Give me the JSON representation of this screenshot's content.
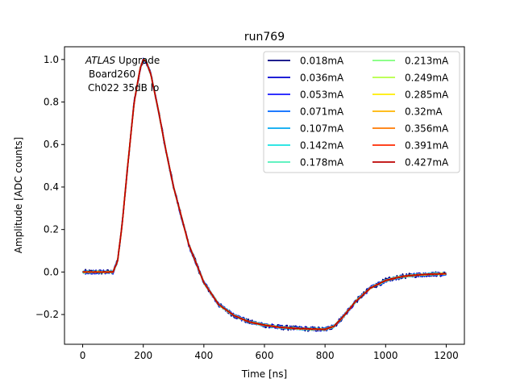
{
  "chart_data": {
    "type": "line",
    "title": "run769",
    "xlabel": "Time [ns]",
    "ylabel": "Amplitude [ADC counts]",
    "xlim": [
      -60,
      1260
    ],
    "ylim": [
      -0.34,
      1.06
    ],
    "xticks": [
      0,
      200,
      400,
      600,
      800,
      1000,
      1200
    ],
    "yticks": [
      -0.2,
      0.0,
      0.2,
      0.4,
      0.6,
      0.8,
      1.0
    ],
    "xtick_labels": [
      "0",
      "200",
      "400",
      "600",
      "800",
      "1000",
      "1200"
    ],
    "ytick_labels": [
      "−0.2",
      "0.0",
      "0.2",
      "0.4",
      "0.6",
      "0.8",
      "1.0"
    ],
    "grid": false,
    "legend_position": "top-right",
    "legend_columns": 2,
    "annotation": {
      "italic": "ATLAS",
      "line1_rest": " Upgrade",
      "line2": "Board260",
      "line3": "Ch022 35dB lo"
    },
    "x": [
      0,
      100,
      115,
      130,
      150,
      170,
      190,
      200,
      210,
      225,
      250,
      275,
      300,
      350,
      400,
      450,
      500,
      550,
      600,
      650,
      700,
      750,
      800,
      830,
      860,
      900,
      950,
      1000,
      1050,
      1100,
      1150,
      1200
    ],
    "template": [
      0.0,
      0.0,
      0.05,
      0.22,
      0.52,
      0.8,
      0.96,
      1.0,
      0.99,
      0.93,
      0.76,
      0.57,
      0.4,
      0.13,
      -0.05,
      -0.155,
      -0.205,
      -0.235,
      -0.25,
      -0.26,
      -0.265,
      -0.268,
      -0.27,
      -0.255,
      -0.21,
      -0.14,
      -0.075,
      -0.04,
      -0.022,
      -0.014,
      -0.01,
      -0.008
    ],
    "series": [
      {
        "name": "0.018mA",
        "color": "#00007f",
        "noise": 0.012
      },
      {
        "name": "0.036mA",
        "color": "#0000d0",
        "noise": 0.01
      },
      {
        "name": "0.053mA",
        "color": "#1414ff",
        "noise": 0.008
      },
      {
        "name": "0.071mA",
        "color": "#0068ff",
        "noise": 0.007
      },
      {
        "name": "0.107mA",
        "color": "#00a8f0",
        "noise": 0.006
      },
      {
        "name": "0.142mA",
        "color": "#16e3e0",
        "noise": 0.005
      },
      {
        "name": "0.178mA",
        "color": "#4bf0b8",
        "noise": 0.004
      },
      {
        "name": "0.213mA",
        "color": "#7dff7a",
        "noise": 0.004
      },
      {
        "name": "0.249mA",
        "color": "#b4ff43",
        "noise": 0.003
      },
      {
        "name": "0.285mA",
        "color": "#ffed00",
        "noise": 0.003
      },
      {
        "name": "0.32mA",
        "color": "#ffb400",
        "noise": 0.002
      },
      {
        "name": "0.356mA",
        "color": "#ff7a00",
        "noise": 0.002
      },
      {
        "name": "0.391mA",
        "color": "#ff2a00",
        "noise": 0.002
      },
      {
        "name": "0.427mA",
        "color": "#bb0000",
        "noise": 0.002
      }
    ]
  }
}
